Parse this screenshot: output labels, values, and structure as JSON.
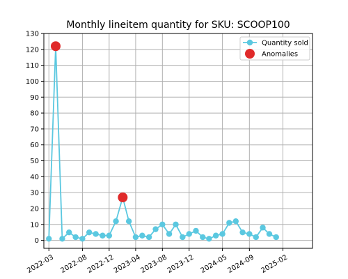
{
  "chart_data": {
    "type": "line",
    "title": "Monthly lineitem quantity for SKU: SCOOP100",
    "xlabel": "",
    "ylabel": "",
    "ylim": [
      -5,
      130
    ],
    "yticks": [
      0,
      10,
      20,
      30,
      40,
      50,
      60,
      70,
      80,
      90,
      100,
      110,
      120,
      130
    ],
    "xlim": [
      "2022-02-06",
      "2025-06-16"
    ],
    "xticks": [
      "2022-03",
      "2022-08",
      "2022-12",
      "2023-04",
      "2023-08",
      "2023-12",
      "2024-05",
      "2024-09",
      "2025-02"
    ],
    "grid": true,
    "legend_position": "top-right",
    "series": [
      {
        "name": "Quantity sold",
        "color": "#5bc8e0",
        "marker": "circle",
        "points": [
          [
            "2022-03-01",
            1
          ],
          [
            "2022-04-01",
            122
          ],
          [
            "2022-05-01",
            1
          ],
          [
            "2022-06-01",
            5
          ],
          [
            "2022-07-01",
            2
          ],
          [
            "2022-08-01",
            1
          ],
          [
            "2022-09-01",
            5
          ],
          [
            "2022-10-01",
            4
          ],
          [
            "2022-11-01",
            3
          ],
          [
            "2022-12-01",
            3
          ],
          [
            "2023-01-01",
            12
          ],
          [
            "2023-02-01",
            27
          ],
          [
            "2023-03-01",
            12
          ],
          [
            "2023-04-01",
            2
          ],
          [
            "2023-05-01",
            3
          ],
          [
            "2023-06-01",
            2
          ],
          [
            "2023-07-01",
            7
          ],
          [
            "2023-08-01",
            10
          ],
          [
            "2023-09-01",
            4
          ],
          [
            "2023-10-01",
            10
          ],
          [
            "2023-11-01",
            2
          ],
          [
            "2023-12-01",
            4
          ],
          [
            "2024-01-01",
            6
          ],
          [
            "2024-02-01",
            2
          ],
          [
            "2024-03-01",
            1
          ],
          [
            "2024-04-01",
            3
          ],
          [
            "2024-05-01",
            4
          ],
          [
            "2024-06-01",
            11
          ],
          [
            "2024-07-01",
            12
          ],
          [
            "2024-08-01",
            5
          ],
          [
            "2024-09-01",
            4
          ],
          [
            "2024-10-01",
            2
          ],
          [
            "2024-11-01",
            8
          ],
          [
            "2024-12-01",
            4
          ],
          [
            "2025-01-01",
            2
          ]
        ]
      },
      {
        "name": "Anomalies",
        "color": "#e02a2a",
        "marker": "circle-large",
        "points": [
          [
            "2022-04-01",
            122
          ],
          [
            "2023-02-01",
            27
          ]
        ]
      }
    ]
  }
}
